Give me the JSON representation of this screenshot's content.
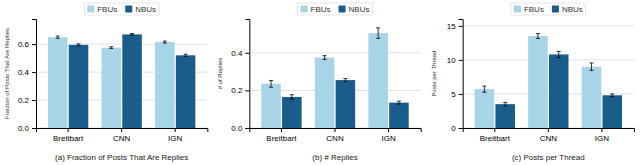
{
  "chart_data": [
    {
      "type": "bar",
      "title": "(a) Fraction of Posts That Are Replies",
      "ylabel": "Fraction of Posts That Are Replies",
      "categories": [
        "Breitbart",
        "CNN",
        "IGN"
      ],
      "series": [
        {
          "name": "FBUs",
          "color": "#A8D4E8",
          "values": [
            0.65,
            0.575,
            0.615
          ],
          "errors": [
            0.008,
            0.006,
            0.007
          ]
        },
        {
          "name": "NBUs",
          "color": "#1A5C8A",
          "values": [
            0.595,
            0.67,
            0.52
          ],
          "errors": [
            0.007,
            0.006,
            0.008
          ]
        }
      ],
      "ylim": [
        0,
        0.78
      ],
      "yticks": [
        {
          "value": 0.0,
          "label": "0.0"
        },
        0.2,
        0.4,
        0.6
      ],
      "grid": true,
      "legend": "top"
    },
    {
      "type": "bar",
      "title": "(b) # Replies",
      "ylabel": "# of Replies",
      "categories": [
        "Breitbart",
        "CNN",
        "IGN"
      ],
      "series": [
        {
          "name": "FBUs",
          "color": "#A8D4E8",
          "values": [
            0.235,
            0.375,
            0.505
          ],
          "errors": [
            0.018,
            0.01,
            0.028
          ]
        },
        {
          "name": "NBUs",
          "color": "#1A5C8A",
          "values": [
            0.165,
            0.255,
            0.135
          ],
          "errors": [
            0.012,
            0.008,
            0.008
          ]
        }
      ],
      "ylim": [
        0,
        0.58
      ],
      "yticks": [
        {
          "value": 0.0,
          "label": "0.0"
        },
        0.2,
        0.4
      ],
      "grid": true,
      "legend": "top"
    },
    {
      "type": "bar",
      "title": "(c) Posts per Thread",
      "ylabel": "Posts per Thread",
      "categories": [
        "Breitbart",
        "CNN",
        "IGN"
      ],
      "series": [
        {
          "name": "FBUs",
          "color": "#A8D4E8",
          "values": [
            5.7,
            13.5,
            9.0
          ],
          "errors": [
            0.45,
            0.35,
            0.55
          ]
        },
        {
          "name": "NBUs",
          "color": "#1A5C8A",
          "values": [
            3.5,
            10.8,
            4.8
          ],
          "errors": [
            0.25,
            0.45,
            0.2
          ]
        }
      ],
      "ylim": [
        0,
        16
      ],
      "yticks": [
        0,
        5,
        10,
        15
      ],
      "grid": true,
      "legend": "top"
    }
  ]
}
